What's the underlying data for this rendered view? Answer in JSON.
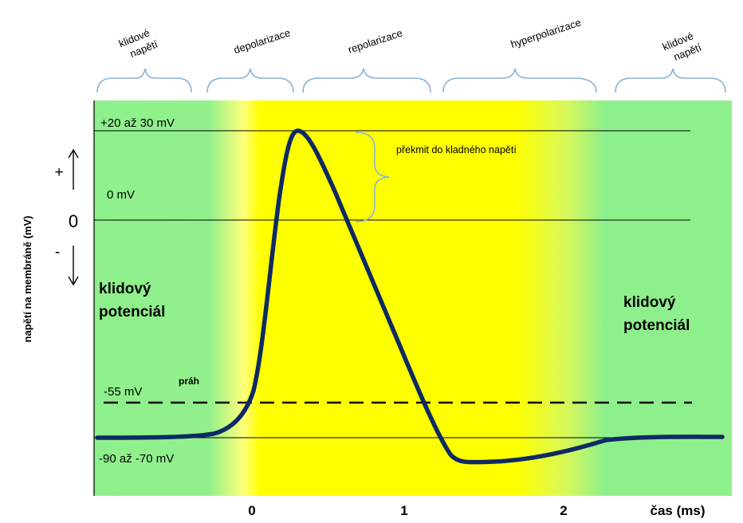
{
  "phases": [
    {
      "id": "rest1",
      "label_line1": "klidové",
      "label_line2": "napětí"
    },
    {
      "id": "depol",
      "label": "depolarizace"
    },
    {
      "id": "repol",
      "label": "repolarizace"
    },
    {
      "id": "hyper",
      "label": "hyperpolarizace"
    },
    {
      "id": "rest2",
      "label_line1": "klidové",
      "label_line2": "napětí"
    }
  ],
  "levels": {
    "peak": "+20 až 30 mV",
    "zero": "0 mV",
    "threshold": "-55 mV",
    "threshold_tag": "práh",
    "rest": "-90 až -70 mV"
  },
  "overshoot_note": "překmit do kladného napětí",
  "left_axis": {
    "plus": "+",
    "zero": "0",
    "minus": "-",
    "label": "napětí na membráně (mV)"
  },
  "rest_left": {
    "line1": "klidový",
    "line2": "potenciál"
  },
  "rest_right": {
    "line1": "klidový",
    "line2": "potenciál"
  },
  "time_axis": {
    "ticks": [
      "0",
      "1",
      "2"
    ],
    "label": "čas (ms)"
  },
  "colors": {
    "rest_green": "#8ef08c",
    "active_yellow": "#ffff00",
    "curve": "#0e2a63"
  }
}
